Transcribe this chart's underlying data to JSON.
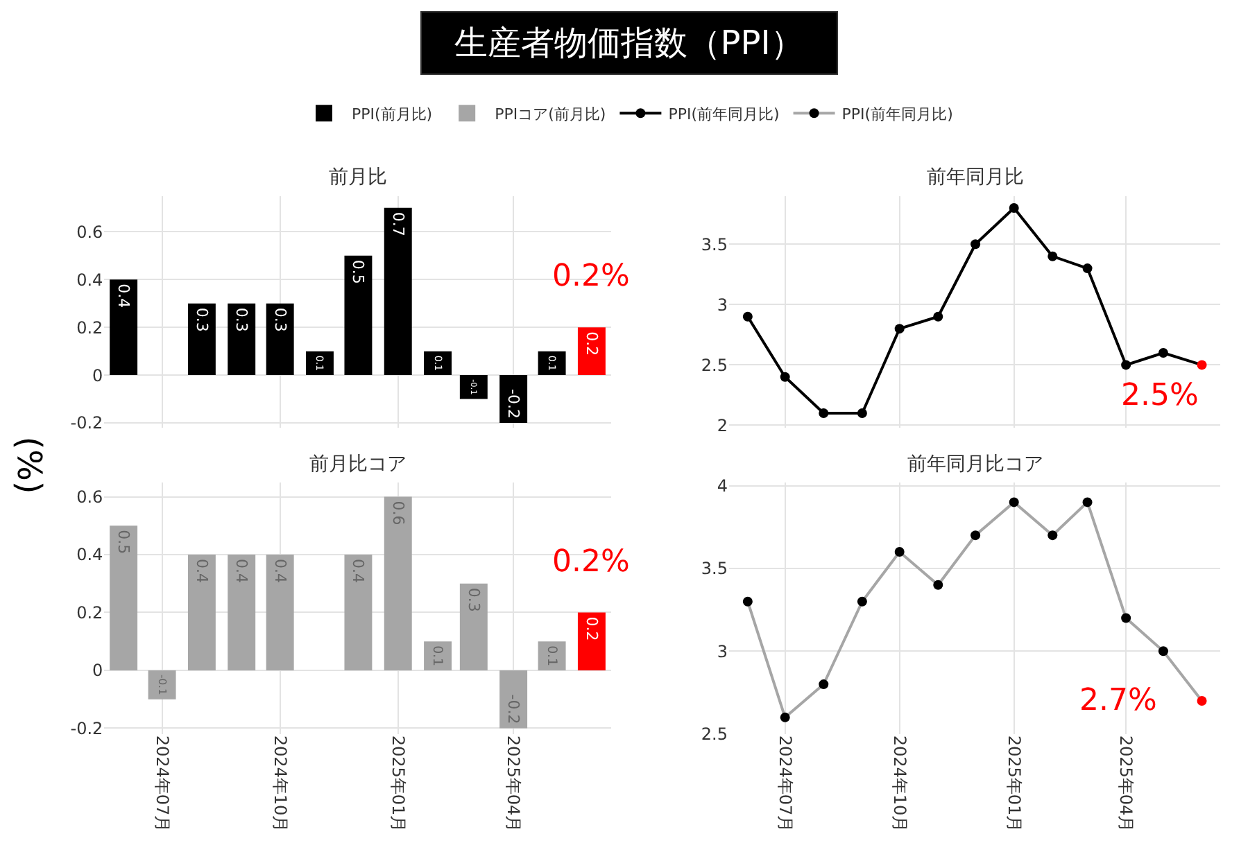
{
  "chart_data": [
    {
      "type": "bar",
      "title": "生産者物価指数（PPI）",
      "subtitle": "前月比",
      "ylabel": "(%)",
      "x": [
        "2024-06",
        "2024-07",
        "2024-08",
        "2024-09",
        "2024-10",
        "2024-11",
        "2024-12",
        "2025-01",
        "2025-02",
        "2025-03",
        "2025-04",
        "2025-05",
        "2025-06"
      ],
      "series": [
        {
          "name": "PPI(前月比)",
          "colors": [
            "#000000",
            "#000000",
            "#000000",
            "#000000",
            "#000000",
            "#000000",
            "#000000",
            "#000000",
            "#000000",
            "#000000",
            "#000000",
            "#000000",
            "#ff0000"
          ],
          "values": [
            0.4,
            0,
            0.3,
            0.3,
            0.3,
            0.1,
            0.5,
            0.7,
            0.1,
            -0.1,
            -0.2,
            0.1,
            0.2
          ],
          "value_labels": [
            "0.4",
            null,
            "0.3",
            "0.3",
            "0.3",
            "0.1",
            "0.5",
            "0.7",
            "0.1",
            "-0.1",
            "-0.2",
            "0.1",
            "0.2"
          ]
        }
      ],
      "annotations": [
        {
          "text": "0.2%",
          "x": "2025-06",
          "y": 0.2
        }
      ],
      "xlim": [
        "2024-05-17",
        "2025-06-16"
      ],
      "xticks": [
        {
          "value": "2024-07",
          "label": null
        },
        {
          "value": "2024-10",
          "label": null
        },
        {
          "value": "2025-01",
          "label": null
        },
        {
          "value": "2025-04",
          "label": null
        }
      ],
      "ylim": [
        -0.22,
        0.75
      ],
      "yticks": [
        -0.2,
        0,
        0.2,
        0.4,
        0.6
      ],
      "tick_labels": "y",
      "grid": true,
      "legend": "top"
    },
    {
      "type": "line",
      "subtitle": "前年同月比",
      "x": [
        "2024-06",
        "2024-07",
        "2024-08",
        "2024-09",
        "2024-10",
        "2024-11",
        "2024-12",
        "2025-01",
        "2025-02",
        "2025-03",
        "2025-04",
        "2025-05",
        "2025-06"
      ],
      "series": [
        {
          "name": "PPI(前年同月比)",
          "color": "#000000",
          "colors": [
            "#000000",
            "#000000",
            "#000000",
            "#000000",
            "#000000",
            "#000000",
            "#000000",
            "#000000",
            "#000000",
            "#000000",
            "#000000",
            "#000000",
            "#ff0000"
          ],
          "values": [
            2.9,
            2.4,
            2.1,
            2.1,
            2.8,
            2.9,
            3.5,
            3.8,
            3.4,
            3.3,
            2.5,
            2.6,
            2.5
          ]
        }
      ],
      "annotations": [
        {
          "text": "2.5%",
          "x": "2025-06",
          "y": 2.5
        }
      ],
      "xlim": [
        "2024-05-17",
        "2025-06-16"
      ],
      "xticks": [
        {
          "value": "2024-07",
          "label": null
        },
        {
          "value": "2024-10",
          "label": null
        },
        {
          "value": "2025-01",
          "label": null
        },
        {
          "value": "2025-04",
          "label": null
        }
      ],
      "ylim": [
        1.98,
        3.9
      ],
      "yticks": [
        2,
        2.5,
        3,
        3.5
      ],
      "tick_labels": "y",
      "grid": true,
      "legend": "top",
      "marker": "circle",
      "line_style": "solid"
    },
    {
      "type": "bar",
      "subtitle": "前月比コア",
      "x": [
        "2024-06",
        "2024-07",
        "2024-08",
        "2024-09",
        "2024-10",
        "2024-11",
        "2024-12",
        "2025-01",
        "2025-02",
        "2025-03",
        "2025-04",
        "2025-05",
        "2025-06"
      ],
      "series": [
        {
          "name": "PPIコア(前月比)",
          "colors": [
            "#a6a6a6",
            "#a6a6a6",
            "#a6a6a6",
            "#a6a6a6",
            "#a6a6a6",
            "#a6a6a6",
            "#a6a6a6",
            "#a6a6a6",
            "#a6a6a6",
            "#a6a6a6",
            "#a6a6a6",
            "#a6a6a6",
            "#ff0000"
          ],
          "values": [
            0.5,
            -0.1,
            0.4,
            0.4,
            0.4,
            0,
            0.4,
            0.6,
            0.1,
            0.3,
            -0.2,
            0.1,
            0.2
          ],
          "value_labels": [
            "0.5",
            "-0.1",
            "0.4",
            "0.4",
            "0.4",
            null,
            "0.4",
            "0.6",
            "0.1",
            "0.3",
            "-0.2",
            "0.1",
            "0.2"
          ]
        }
      ],
      "annotations": [
        {
          "text": "0.2%",
          "x": "2025-06",
          "y": 0.2
        }
      ],
      "xlim": [
        "2024-05-17",
        "2025-06-16"
      ],
      "xticks": [
        {
          "value": "2024-07",
          "label": "2024年07月"
        },
        {
          "value": "2024-10",
          "label": "2024年10月"
        },
        {
          "value": "2025-01",
          "label": "2025年01月"
        },
        {
          "value": "2025-04",
          "label": "2025年04月"
        }
      ],
      "ylim": [
        -0.22,
        0.65
      ],
      "yticks": [
        -0.2,
        0,
        0.2,
        0.4,
        0.6
      ],
      "grid": true,
      "legend": "top"
    },
    {
      "type": "line",
      "subtitle": "前年同月比コア",
      "x": [
        "2024-06",
        "2024-07",
        "2024-08",
        "2024-09",
        "2024-10",
        "2024-11",
        "2024-12",
        "2025-01",
        "2025-02",
        "2025-03",
        "2025-04",
        "2025-05",
        "2025-06"
      ],
      "series": [
        {
          "name": "PPI(前年同月比)",
          "color": "#a6a6a6",
          "colors": [
            "#000000",
            "#000000",
            "#000000",
            "#000000",
            "#000000",
            "#000000",
            "#000000",
            "#000000",
            "#000000",
            "#000000",
            "#000000",
            "#000000",
            "#ff0000"
          ],
          "values": [
            3.3,
            2.6,
            2.8,
            3.3,
            3.6,
            3.4,
            3.7,
            3.9,
            3.7,
            3.9,
            3.2,
            3.0,
            2.7
          ]
        }
      ],
      "annotations": [
        {
          "text": "2.7%",
          "x": "2025-06",
          "y": 2.7
        }
      ],
      "xlim": [
        "2024-05-17",
        "2025-06-16"
      ],
      "xticks": [
        {
          "value": "2024-07",
          "label": "2024年07月"
        },
        {
          "value": "2024-10",
          "label": "2024年10月"
        },
        {
          "value": "2025-01",
          "label": "2025年01月"
        },
        {
          "value": "2025-04",
          "label": "2025年04月"
        }
      ],
      "ylim": [
        2.5,
        4.02
      ],
      "yticks": [
        2.5,
        3,
        3.5,
        4
      ],
      "grid": true,
      "legend": "top",
      "marker": "circle",
      "line_style": "solid"
    }
  ]
}
